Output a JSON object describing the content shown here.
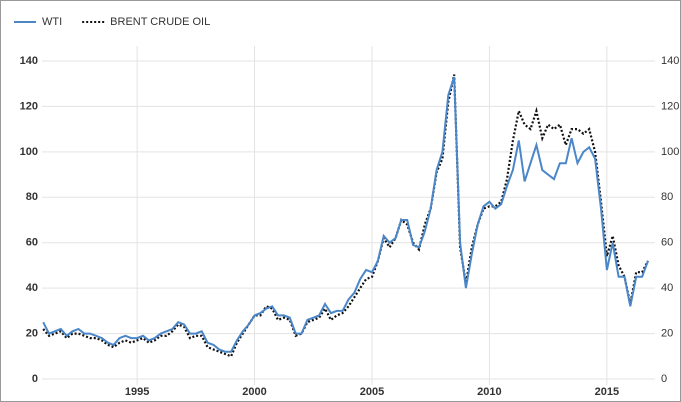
{
  "chart_data": {
    "type": "line",
    "x": [
      1991,
      1991.25,
      1991.5,
      1991.75,
      1992,
      1992.25,
      1992.5,
      1992.75,
      1993,
      1993.25,
      1993.5,
      1993.75,
      1994,
      1994.25,
      1994.5,
      1994.75,
      1995,
      1995.25,
      1995.5,
      1995.75,
      1996,
      1996.25,
      1996.5,
      1996.75,
      1997,
      1997.25,
      1997.5,
      1997.75,
      1998,
      1998.25,
      1998.5,
      1998.75,
      1999,
      1999.25,
      1999.5,
      1999.75,
      2000,
      2000.25,
      2000.5,
      2000.75,
      2001,
      2001.25,
      2001.5,
      2001.75,
      2002,
      2002.25,
      2002.5,
      2002.75,
      2003,
      2003.25,
      2003.5,
      2003.75,
      2004,
      2004.25,
      2004.5,
      2004.75,
      2005,
      2005.25,
      2005.5,
      2005.75,
      2006,
      2006.25,
      2006.5,
      2006.75,
      2007,
      2007.25,
      2007.5,
      2007.75,
      2008,
      2008.25,
      2008.5,
      2008.75,
      2009,
      2009.25,
      2009.5,
      2009.75,
      2010,
      2010.25,
      2010.5,
      2010.75,
      2011,
      2011.25,
      2011.5,
      2011.75,
      2012,
      2012.25,
      2012.5,
      2012.75,
      2013,
      2013.25,
      2013.5,
      2013.75,
      2014,
      2014.25,
      2014.5,
      2014.75,
      2015,
      2015.25,
      2015.5,
      2015.75,
      2016,
      2016.25,
      2016.5,
      2016.75
    ],
    "series": [
      {
        "name": "WTI",
        "color": "#4a86c8",
        "line_style": "solid",
        "values": [
          25,
          20,
          21,
          22,
          19,
          21,
          22,
          20,
          20,
          19,
          18,
          16,
          15,
          18,
          19,
          18,
          18,
          19,
          17,
          18,
          20,
          21,
          22,
          25,
          24,
          20,
          20,
          21,
          16,
          15,
          13,
          12,
          12,
          17,
          21,
          24,
          28,
          29,
          31,
          32,
          28,
          28,
          27,
          20,
          20,
          26,
          27,
          28,
          33,
          29,
          30,
          30,
          35,
          38,
          44,
          48,
          47,
          52,
          63,
          60,
          62,
          70,
          70,
          59,
          58,
          65,
          75,
          92,
          100,
          125,
          133,
          60,
          40,
          55,
          68,
          76,
          78,
          75,
          77,
          85,
          92,
          105,
          87,
          95,
          103,
          92,
          90,
          88,
          95,
          95,
          106,
          95,
          100,
          102,
          97,
          75,
          48,
          60,
          45,
          45,
          32,
          45,
          45,
          52
        ]
      },
      {
        "name": "BRENT CRUDE OIL",
        "color": "#111111",
        "line_style": "dotted",
        "values": [
          22,
          19,
          20,
          21,
          18,
          20,
          20,
          19,
          18,
          18,
          17,
          15,
          14,
          16,
          17,
          16,
          17,
          18,
          16,
          17,
          19,
          19,
          21,
          24,
          23,
          18,
          19,
          19,
          14,
          13,
          12,
          11,
          10,
          16,
          20,
          24,
          28,
          28,
          32,
          31,
          26,
          27,
          26,
          19,
          20,
          25,
          26,
          27,
          31,
          26,
          28,
          29,
          32,
          36,
          40,
          44,
          45,
          52,
          62,
          58,
          62,
          70,
          68,
          60,
          57,
          68,
          75,
          91,
          97,
          122,
          134,
          58,
          42,
          58,
          68,
          75,
          76,
          76,
          78,
          88,
          105,
          118,
          112,
          110,
          118,
          106,
          112,
          110,
          112,
          103,
          110,
          110,
          108,
          110,
          100,
          78,
          54,
          63,
          50,
          45,
          33,
          47,
          47,
          52
        ]
      }
    ],
    "xlim": [
      1990.95,
      2017.05
    ],
    "xticks": [
      1995,
      2000,
      2005,
      2010,
      2015
    ],
    "ylim": [
      0,
      140
    ],
    "yticks": [
      0,
      20,
      40,
      60,
      80,
      100,
      120,
      140
    ],
    "y2lim": [
      0,
      140
    ],
    "y2ticks": [
      0,
      20,
      40,
      60,
      80,
      100,
      120,
      140
    ],
    "grid": true,
    "legend": "top-left"
  }
}
